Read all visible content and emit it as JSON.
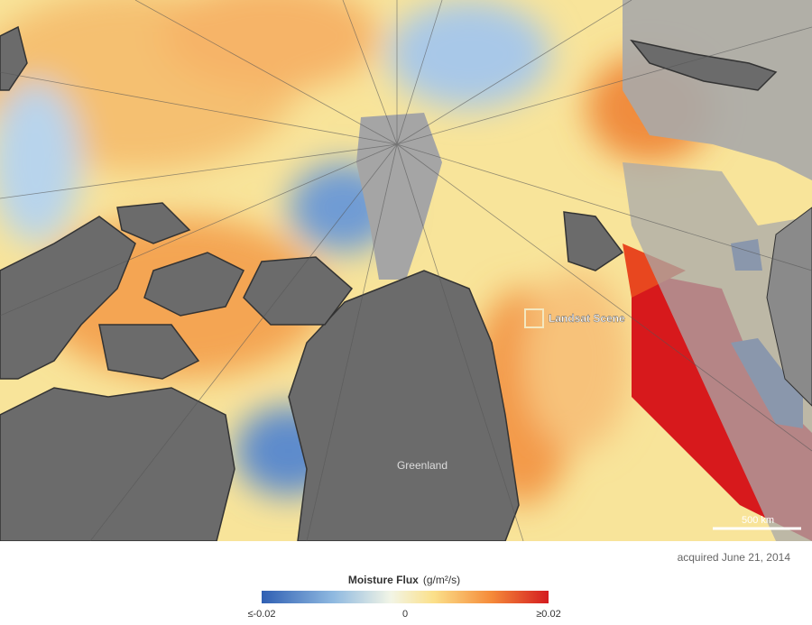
{
  "map": {
    "labels": {
      "landsat": "Landsat Scene",
      "greenland": "Greenland",
      "scale": "500 km"
    },
    "caption": "acquired June 21, 2014",
    "legend": {
      "title": "Moisture Flux",
      "unit": "(g/m²/s)",
      "labels": [
        "≤-0.02",
        "0",
        "≥0.02"
      ]
    }
  }
}
